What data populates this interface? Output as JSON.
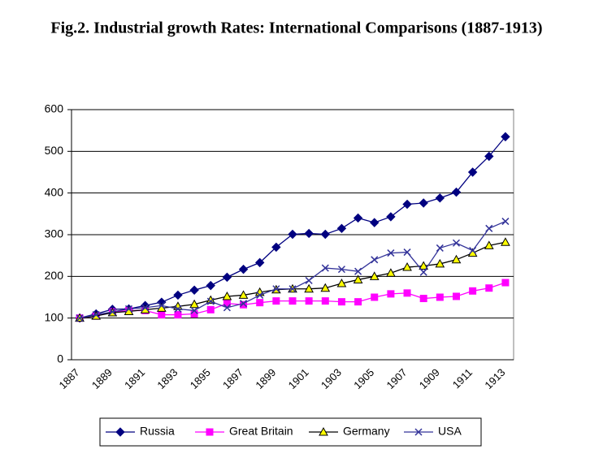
{
  "chart_data": {
    "type": "line",
    "title": "Fig.2. Industrial growth Rates: International Comparisons (1887-1913)",
    "categories": [
      "1887",
      null,
      "1889",
      null,
      "1891",
      null,
      "1893",
      null,
      "1895",
      null,
      "1897",
      null,
      "1899",
      null,
      "1901",
      null,
      "1903",
      null,
      "1905",
      null,
      "1907",
      null,
      "1909",
      null,
      "1911",
      null,
      "1913"
    ],
    "series": [
      {
        "name": "Russia",
        "color": "#000080",
        "marker": "diamond",
        "values": [
          100,
          110,
          121,
          122,
          130,
          138,
          155,
          167,
          178,
          198,
          217,
          233,
          270,
          301,
          303,
          301,
          315,
          340,
          329,
          343,
          373,
          376,
          388,
          402,
          450,
          488,
          535
        ]
      },
      {
        "name": "Great Britain",
        "color": "#ff00ff",
        "marker": "square",
        "values": [
          100,
          105,
          115,
          118,
          118,
          108,
          108,
          110,
          120,
          135,
          132,
          137,
          141,
          141,
          141,
          141,
          139,
          139,
          150,
          158,
          160,
          147,
          150,
          152,
          165,
          172,
          185
        ]
      },
      {
        "name": "Germany",
        "color": "#ffff00",
        "marker": "triangle",
        "values": [
          100,
          105,
          113,
          116,
          120,
          124,
          128,
          133,
          143,
          152,
          155,
          162,
          168,
          170,
          170,
          172,
          183,
          192,
          200,
          208,
          222,
          225,
          230,
          240,
          256,
          274,
          282
        ]
      },
      {
        "name": "USA",
        "color": "#333399",
        "marker": "x",
        "values": [
          100,
          108,
          115,
          122,
          125,
          130,
          122,
          118,
          140,
          125,
          135,
          155,
          170,
          170,
          190,
          220,
          217,
          212,
          240,
          256,
          258,
          210,
          268,
          280,
          262,
          315,
          332
        ]
      }
    ],
    "ylim": [
      0,
      600
    ],
    "yticks": [
      0,
      100,
      200,
      300,
      400,
      500,
      600
    ],
    "grid": true,
    "legend": "bottom"
  }
}
